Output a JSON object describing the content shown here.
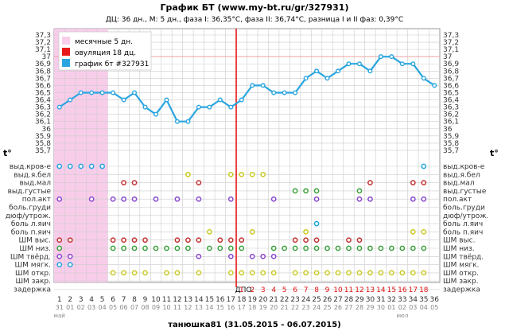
{
  "title": "График БТ (www.my-bt.ru/gr/327931)",
  "subtitle": "ДЦ: 36 дн., М: 5 дн., фаза I: 36,35°C, фаза II: 36,74°C, разница I и II фаз: 0,39°C",
  "bottom_title": "танюшка81 (31.05.2015 - 06.07.2015)",
  "axis_t_label": "t°",
  "dpo_label": "ДПО",
  "colors": {
    "line": "#2aa5e0",
    "menses": "#f8cdea",
    "ovulation": "#e81818",
    "grid": "#cccccc",
    "dpo_red": "#dd1111",
    "date_gray": "#888888"
  },
  "legend": [
    {
      "label": "месячные 5 дн.",
      "color": "#f8cdea"
    },
    {
      "label": "овуляция 18 дц.",
      "color": "#e81818"
    },
    {
      "label": "график бт #327931",
      "color": "#2aa5e0"
    }
  ],
  "chart_data": {
    "type": "line",
    "title": "График БТ (www.my-bt.ru/gr/327931)",
    "y_ticks": [
      "37,3",
      "37,2",
      "37,1",
      "37",
      "36,9",
      "36,8",
      "36,7",
      "36,6",
      "36,5",
      "36,4",
      "36,3",
      "36,2",
      "36,1",
      "36",
      "35,9",
      "35,8",
      "35,7"
    ],
    "ylim": [
      35.7,
      37.3
    ],
    "day_numbers": [
      "1",
      "2",
      "3",
      "4",
      "5",
      "6",
      "7",
      "8",
      "9",
      "10",
      "11",
      "12",
      "13",
      "14",
      "15",
      "16",
      "17",
      "18",
      "19",
      "20",
      "21",
      "22",
      "23",
      "24",
      "25",
      "26",
      "27",
      "28",
      "29",
      "30",
      "31",
      "32",
      "33",
      "34",
      "35",
      "36"
    ],
    "dates": [
      "31",
      "01",
      "02",
      "03",
      "04",
      "05",
      "06",
      "07",
      "08",
      "09",
      "10",
      "11",
      "12",
      "13",
      "14",
      "15",
      "16",
      "17",
      "18",
      "19",
      "20",
      "21",
      "22",
      "23",
      "24",
      "25",
      "26",
      "27",
      "28",
      "29",
      "30",
      "01",
      "02",
      "03",
      "04",
      "05"
    ],
    "dpo_numbers": [
      "1",
      "2",
      "3",
      "4",
      "5",
      "6",
      "7",
      "8",
      "9",
      "10",
      "11",
      "12",
      "13",
      "14",
      "15",
      "16",
      "17",
      "18"
    ],
    "month_labels": [
      {
        "label": "май",
        "day": 1
      },
      {
        "label": "июл",
        "day": 33
      }
    ],
    "menses_days": [
      1,
      5
    ],
    "ovulation_day": 18,
    "series": [
      {
        "name": "график бт #327931",
        "values": [
          36.3,
          36.4,
          36.5,
          36.5,
          36.5,
          36.5,
          36.4,
          36.5,
          36.3,
          36.2,
          36.4,
          36.1,
          36.1,
          36.3,
          36.3,
          36.4,
          36.3,
          36.4,
          36.6,
          36.6,
          36.5,
          36.5,
          36.5,
          36.7,
          36.8,
          36.7,
          36.8,
          36.9,
          36.9,
          36.8,
          37.0,
          37.0,
          36.9,
          36.9,
          36.7,
          36.6
        ]
      }
    ],
    "annotation_rows": [
      {
        "label": "выд.кров-е",
        "color": "#22a3dd",
        "days": [
          1,
          2,
          3,
          4,
          5,
          35
        ]
      },
      {
        "label": "выд.я.бел",
        "color": "#c9c922",
        "days": [
          13,
          17,
          18,
          19,
          20
        ]
      },
      {
        "label": "выд.мал",
        "color": "#c03030",
        "days": [
          7,
          8,
          14,
          30,
          34,
          35
        ]
      },
      {
        "label": "выд.густые",
        "color": "#3a9f3a",
        "days": [
          23,
          24,
          25,
          29
        ]
      },
      {
        "label": "пол.акт",
        "color": "#8844cc",
        "days": [
          1,
          4,
          6,
          7,
          8,
          10,
          12,
          14,
          17,
          21,
          25,
          29,
          30,
          34,
          35
        ]
      },
      {
        "label": "боль.груди",
        "color": "#22a3dd",
        "days": []
      },
      {
        "label": "дюф/утрож.",
        "color": "#22a3dd",
        "days": []
      },
      {
        "label": "боль л.яич",
        "color": "#22a3dd",
        "days": [
          25
        ]
      },
      {
        "label": "боль п.яич",
        "color": "#c9c922",
        "days": [
          15,
          19,
          24,
          34,
          35
        ]
      },
      {
        "label": "ШМ выс.",
        "color": "#c03030",
        "days": [
          1,
          2,
          6,
          7,
          8,
          9,
          12,
          13,
          14,
          16,
          17,
          18,
          23,
          24,
          25,
          28,
          29
        ]
      },
      {
        "label": "ШМ низ.",
        "color": "#3a9f3a",
        "days": [
          1,
          6,
          7,
          8,
          9,
          10,
          11,
          12,
          13,
          15,
          16,
          17,
          18,
          21,
          22,
          23,
          24,
          25,
          26,
          27,
          28,
          29,
          30,
          31,
          32,
          33,
          34,
          35
        ]
      },
      {
        "label": "ШМ твёрд.",
        "color": "#8844cc",
        "days": [
          1,
          2,
          14,
          17,
          19,
          20,
          21
        ]
      },
      {
        "label": "ШМ мягк.",
        "color": "#22a3dd",
        "days": [
          1,
          2
        ]
      },
      {
        "label": "ШМ откр.",
        "color": "#c9c922",
        "days": [
          6,
          7,
          8,
          9,
          11,
          12,
          14,
          17,
          18,
          19,
          20,
          21,
          23,
          24,
          25,
          26,
          27,
          28,
          29,
          30,
          31,
          32,
          33,
          34,
          35
        ]
      },
      {
        "label": "ШМ закр.",
        "color": "#22a3dd",
        "days": []
      },
      {
        "label": "задержка",
        "color": "#22a3dd",
        "days": []
      }
    ]
  }
}
